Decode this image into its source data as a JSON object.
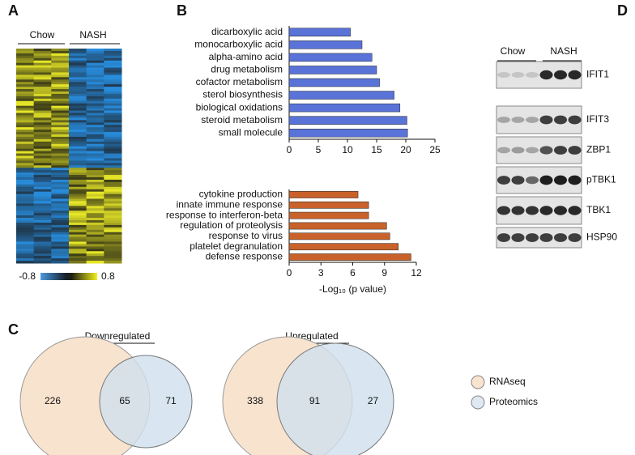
{
  "panel_labels": [
    "A",
    "B",
    "C",
    "D"
  ],
  "heatmap": {
    "groups": [
      "Chow",
      "NASH"
    ],
    "colorbar_ticks": [
      -0.8,
      0.8
    ]
  },
  "chart_data": [
    {
      "type": "bar",
      "orientation": "horizontal",
      "categories": [
        "dicarboxylic acid",
        "monocarboxylic acid",
        "alpha-amino acid",
        "drug metabolism",
        "cofactor metabolism",
        "sterol biosynthesis",
        "biological oxidations",
        "steroid metabolism",
        "small molecule"
      ],
      "values": [
        10.5,
        12.5,
        14.2,
        15,
        15.5,
        18,
        19,
        20.2,
        20.3
      ],
      "color": "#5a73d8",
      "xlim": [
        0,
        25
      ],
      "xticks": [
        0,
        5,
        10,
        15,
        20,
        25
      ]
    },
    {
      "type": "bar",
      "orientation": "horizontal",
      "categories": [
        "cytokine production",
        "innate immune response",
        "response to interferon-beta",
        "regulation of proteolysis",
        "response to virus",
        "platelet degranulation",
        "defense response"
      ],
      "values": [
        6.5,
        7.5,
        7.5,
        9.2,
        9.5,
        10.3,
        11.5
      ],
      "color": "#c8622a",
      "xlim": [
        0,
        12
      ],
      "xticks": [
        0,
        3,
        6,
        9,
        12
      ],
      "x_label": "-Log₁₀ (p value)"
    }
  ],
  "venn": {
    "diagrams": [
      {
        "title": "Downregulated",
        "rnaseq_only": 226,
        "both": 65,
        "proteomics_only": 71
      },
      {
        "title": "Upregulated",
        "rnaseq_only": 338,
        "both": 91,
        "proteomics_only": 27
      }
    ],
    "legend": [
      "RNAseq",
      "Proteomics"
    ]
  },
  "western_blot": {
    "groups": [
      "Chow",
      "NASH"
    ],
    "proteins": [
      "IFIT1",
      "IFIT3",
      "ZBP1",
      "pTBK1",
      "TBK1",
      "HSP90"
    ]
  }
}
